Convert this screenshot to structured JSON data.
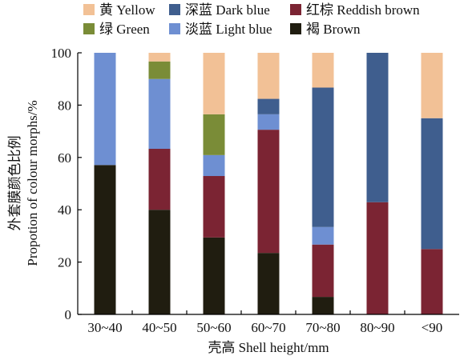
{
  "chart_data": {
    "type": "bar",
    "stacked": true,
    "categories": [
      "30~40",
      "40~50",
      "50~60",
      "60~70",
      "70~80",
      "80~90",
      "<90"
    ],
    "series": [
      {
        "name": "褐 Brown",
        "color": "#201d10",
        "values": [
          57.1,
          40.0,
          29.4,
          23.5,
          6.7,
          0,
          0
        ]
      },
      {
        "name": "红棕 Reddish brown",
        "color": "#7b2433",
        "values": [
          0,
          23.3,
          23.5,
          47.1,
          20.0,
          42.9,
          25.0
        ]
      },
      {
        "name": "淡蓝 Light blue",
        "color": "#6e8fd2",
        "values": [
          42.9,
          26.7,
          8.0,
          5.9,
          6.7,
          0,
          0
        ]
      },
      {
        "name": "深蓝 Dark blue",
        "color": "#3f5e8e",
        "values": [
          0,
          0,
          0,
          5.9,
          53.3,
          57.1,
          50.0
        ]
      },
      {
        "name": "绿 Green",
        "color": "#7a8c37",
        "values": [
          0,
          6.7,
          15.6,
          0,
          0,
          0,
          0
        ]
      },
      {
        "name": "黄 Yellow",
        "color": "#f2c196",
        "values": [
          0,
          3.3,
          23.5,
          17.6,
          13.3,
          0,
          25.0
        ]
      }
    ],
    "legend_order": [
      "黄 Yellow",
      "深蓝 Dark blue",
      "红棕 Reddish brown",
      "绿 Green",
      "淡蓝 Light blue",
      "褐 Brown"
    ],
    "legend_position": "top",
    "xlabel": "壳高 Shell height/mm",
    "ylabel_line1": "外套膜颜色比例",
    "ylabel_line2": "Propotion of colour morphs/%",
    "ylim": [
      0,
      100
    ],
    "yticks": [
      0,
      20,
      40,
      60,
      80,
      100
    ],
    "grid": false
  }
}
